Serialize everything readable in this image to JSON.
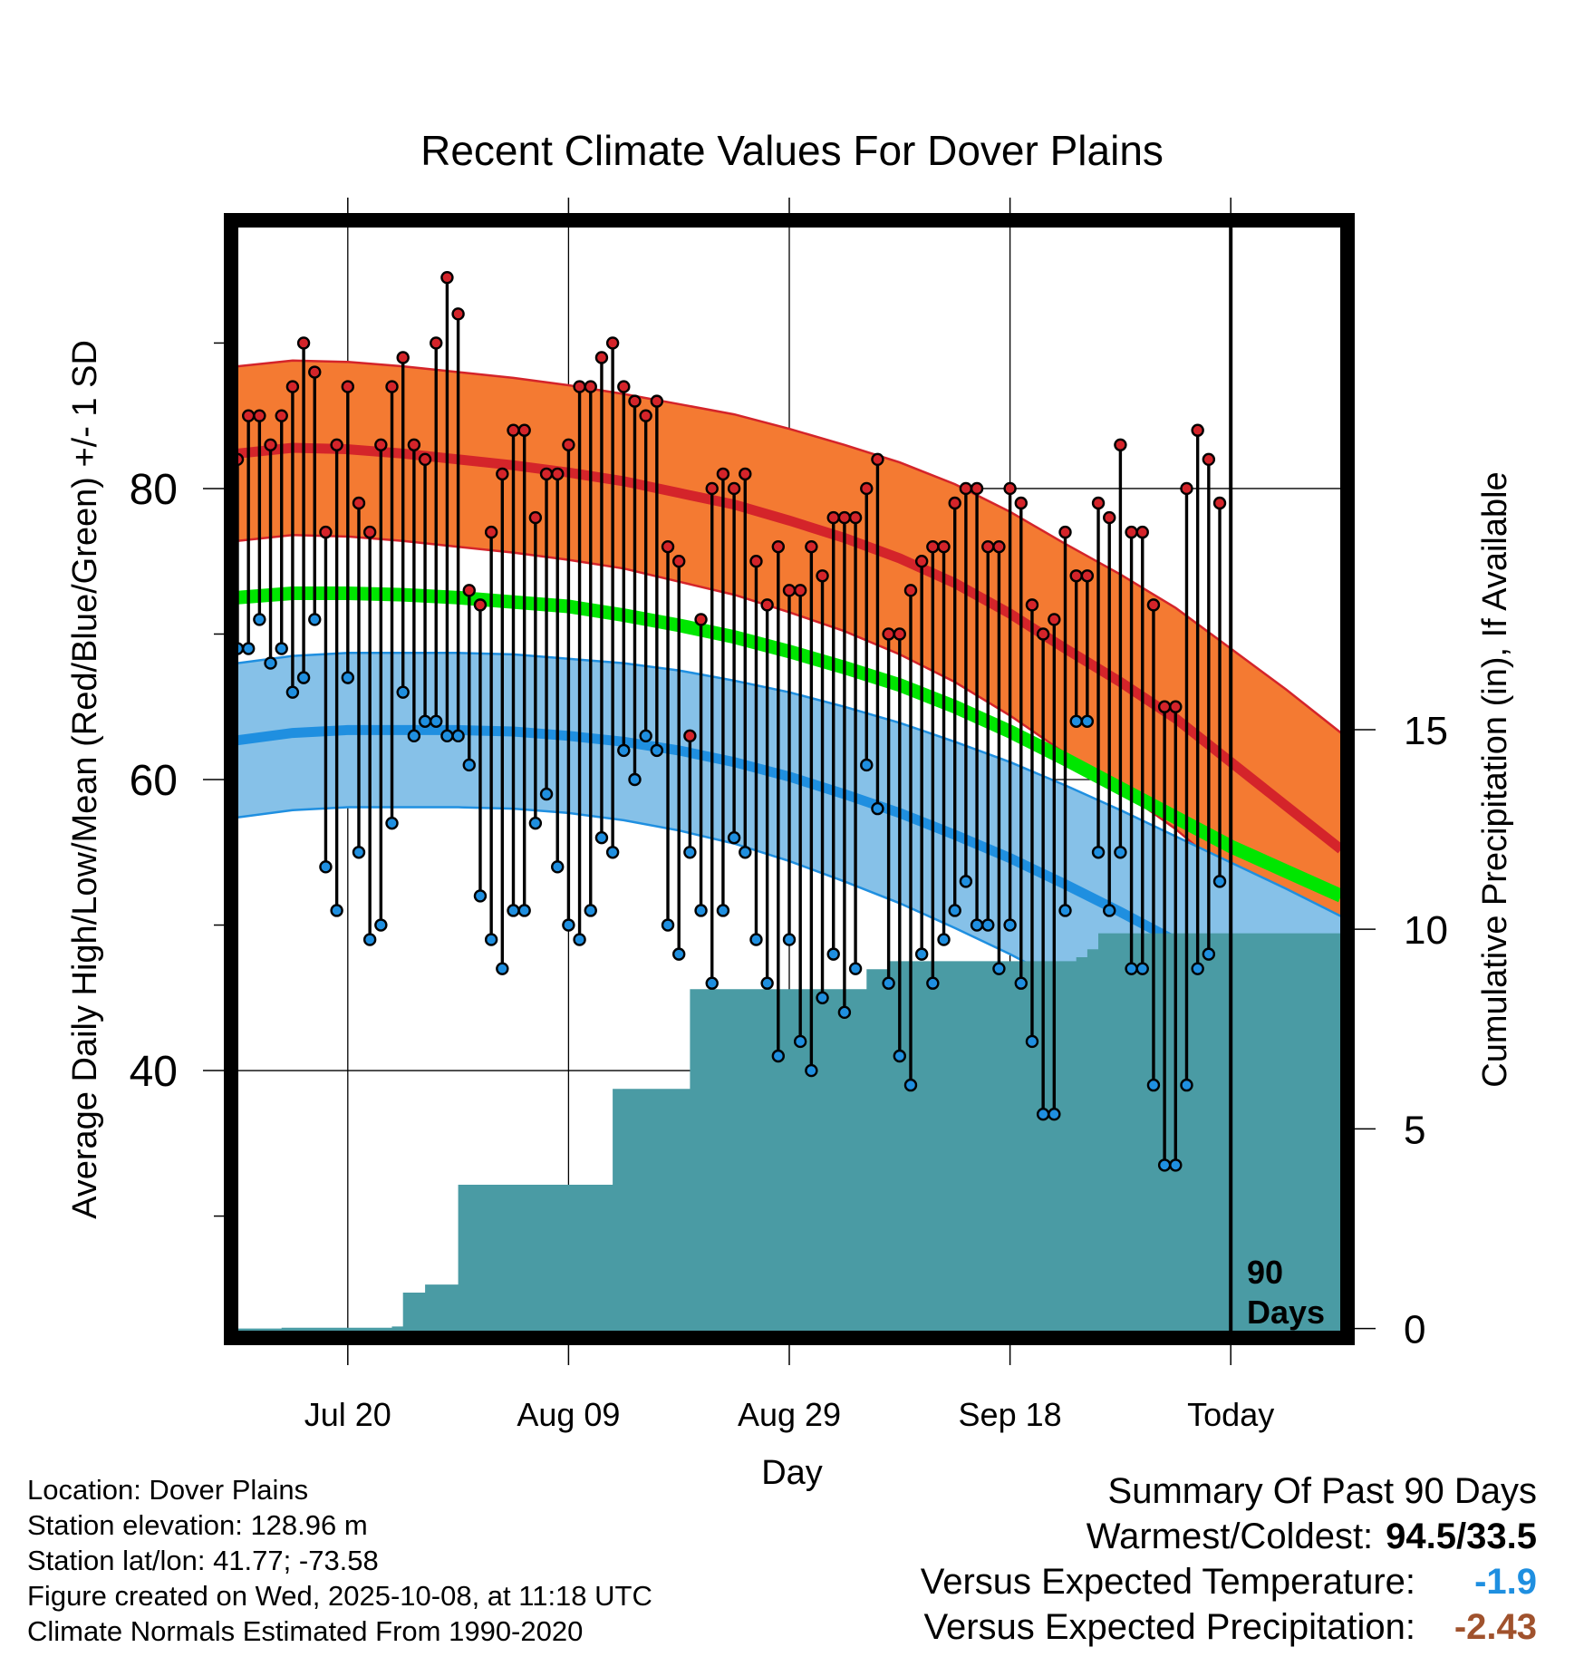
{
  "chart_data": {
    "type": "line",
    "title": "Recent Climate Values For Dover Plains",
    "xlabel": "Day",
    "ylabel": "Average Daily High/Low/Mean (Red/Blue/Green) +/- 1 SD",
    "y2label": "Cumulative Precipitation (in), If Available",
    "x_ticks": [
      {
        "day": 11,
        "label": "Jul 20"
      },
      {
        "day": 31,
        "label": "Aug 09"
      },
      {
        "day": 51,
        "label": "Aug 29"
      },
      {
        "day": 71,
        "label": "Sep 18"
      },
      {
        "day": 91,
        "label": "Today"
      }
    ],
    "xlim": [
      1,
      101
    ],
    "ylim": [
      22,
      98
    ],
    "y_ticks": [
      40,
      60,
      80
    ],
    "y_minor_ticks": [
      30,
      50,
      70,
      90
    ],
    "y2lim": [
      -0.1,
      27.6
    ],
    "y2_ticks": [
      0,
      5,
      10,
      15
    ],
    "today_marker": {
      "day": 91,
      "label_line1": "90",
      "label_line2": "Days"
    },
    "normals": {
      "days": [
        1,
        6,
        11,
        16,
        21,
        26,
        31,
        36,
        41,
        46,
        51,
        56,
        61,
        66,
        71,
        76,
        81,
        86,
        91,
        96,
        101
      ],
      "high": [
        82.4,
        82.8,
        82.7,
        82.4,
        82.0,
        81.6,
        81.1,
        80.5,
        79.7,
        78.9,
        77.8,
        76.6,
        75.2,
        73.5,
        71.4,
        69.0,
        66.7,
        64.2,
        61.2,
        58.2,
        55.2
      ],
      "high_sd": [
        6.0,
        6.0,
        6.0,
        6.0,
        6.0,
        6.0,
        6.0,
        6.0,
        6.1,
        6.2,
        6.3,
        6.4,
        6.6,
        6.8,
        7.0,
        7.2,
        7.4,
        7.6,
        7.8,
        8.0,
        8.0
      ],
      "mean": [
        72.5,
        72.8,
        72.8,
        72.7,
        72.5,
        72.2,
        71.9,
        71.3,
        70.6,
        69.8,
        68.8,
        67.7,
        66.5,
        65.0,
        63.3,
        61.4,
        59.4,
        57.4,
        55.4,
        53.7,
        52.0
      ],
      "low": [
        62.7,
        63.2,
        63.4,
        63.4,
        63.4,
        63.3,
        63.0,
        62.6,
        62.0,
        61.2,
        60.2,
        59.0,
        57.7,
        56.2,
        54.6,
        52.8,
        50.9,
        48.9,
        46.9,
        44.9,
        42.8
      ],
      "low_sd": [
        5.3,
        5.3,
        5.3,
        5.3,
        5.3,
        5.3,
        5.3,
        5.4,
        5.5,
        5.6,
        5.8,
        6.0,
        6.2,
        6.4,
        6.6,
        6.8,
        7.0,
        7.2,
        7.4,
        7.6,
        7.8
      ]
    },
    "series": [
      {
        "name": "Daily High",
        "color": "#d4242a",
        "values": [
          82,
          85,
          85,
          83,
          85,
          87,
          90,
          88,
          77,
          83,
          87,
          79,
          77,
          83,
          87,
          89,
          83,
          82,
          90,
          94.5,
          92,
          73,
          72,
          77,
          81,
          84,
          84,
          78,
          81,
          81,
          83,
          87,
          87,
          89,
          90,
          87,
          86,
          85,
          86,
          76,
          75,
          63,
          71,
          80,
          81,
          80,
          81,
          75,
          72,
          76,
          73,
          73,
          76,
          74,
          78,
          78,
          78,
          80,
          82,
          70,
          70,
          73,
          75,
          76,
          76,
          79,
          80,
          80,
          76,
          76,
          80,
          79,
          72,
          70,
          71,
          77,
          74,
          74,
          79,
          78,
          83,
          77,
          77,
          72,
          65,
          65,
          80,
          84,
          82,
          79
        ]
      },
      {
        "name": "Daily Low",
        "color": "#1f8fe0",
        "values": [
          69,
          69,
          71,
          68,
          69,
          66,
          67,
          71,
          54,
          51,
          67,
          55,
          49,
          50,
          57,
          66,
          63,
          64,
          64,
          63,
          63,
          61,
          52,
          49,
          47,
          51,
          51,
          57,
          59,
          54,
          50,
          49,
          51,
          56,
          55,
          62,
          60,
          63,
          62,
          50,
          48,
          55,
          51,
          46,
          51,
          56,
          55,
          49,
          46,
          41,
          49,
          42,
          40,
          45,
          48,
          44,
          47,
          61,
          58,
          46,
          41,
          39,
          48,
          46,
          49,
          51,
          53,
          50,
          50,
          47,
          50,
          46,
          42,
          37,
          37,
          51,
          64,
          64,
          55,
          51,
          55,
          47,
          47,
          39,
          33.5,
          33.5,
          39,
          47,
          48,
          53
        ]
      },
      {
        "name": "Cumulative Precipitation",
        "color": "#4a9ba4",
        "values": [
          0,
          0,
          0,
          0,
          0.02,
          0.02,
          0.02,
          0.02,
          0.02,
          0.02,
          0.02,
          0.02,
          0.02,
          0.02,
          0.05,
          0.9,
          0.9,
          1.1,
          1.1,
          1.1,
          3.6,
          3.6,
          3.6,
          3.6,
          3.6,
          3.6,
          3.6,
          3.6,
          3.6,
          3.6,
          3.6,
          3.6,
          3.6,
          3.6,
          6.0,
          6.0,
          6.0,
          6.0,
          6.0,
          6.0,
          6.0,
          8.5,
          8.5,
          8.5,
          8.5,
          8.5,
          8.5,
          8.5,
          8.5,
          8.5,
          8.5,
          8.5,
          8.5,
          8.5,
          8.5,
          8.5,
          8.5,
          9.0,
          9.0,
          9.2,
          9.2,
          9.2,
          9.2,
          9.2,
          9.2,
          9.2,
          9.2,
          9.2,
          9.2,
          9.2,
          9.2,
          9.2,
          9.2,
          9.2,
          9.2,
          9.2,
          9.3,
          9.5,
          9.9,
          9.9,
          9.9,
          9.9,
          9.9,
          9.9,
          9.9,
          9.9,
          9.9,
          9.9,
          9.9,
          9.9
        ]
      }
    ],
    "colors": {
      "high_band": "#f47a32",
      "high_line": "#d4242a",
      "mean_line": "#00e600",
      "low_band": "#86c1e8",
      "low_line": "#1f8fe0",
      "precip": "#4a9ba4",
      "frame": "#000000"
    }
  },
  "info": {
    "location": "Location: Dover Plains",
    "elevation": "Station elevation: 128.96 m",
    "latlon": "Station lat/lon: 41.77; -73.58",
    "created": "Figure created on Wed, 2025-10-08, at 11:18 UTC",
    "normals": "Climate Normals Estimated From 1990-2020"
  },
  "summary": {
    "heading": "Summary Of Past 90 Days",
    "warmest_label": "Warmest/Coldest:",
    "warmest_value": "94.5/33.5",
    "temp_label": "Versus Expected Temperature:",
    "temp_value": "-1.9",
    "temp_color": "#1f8fe0",
    "precip_label": "Versus Expected Precipitation:",
    "precip_value": "-2.43",
    "precip_color": "#a0522d"
  }
}
